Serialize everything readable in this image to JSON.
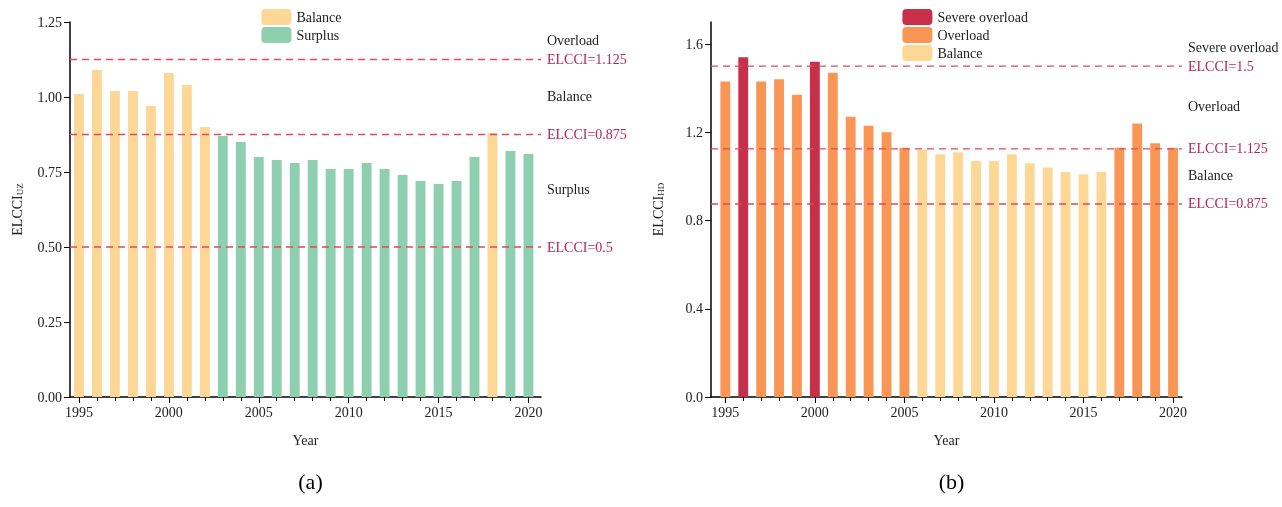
{
  "chart_data": [
    {
      "type": "bar",
      "title": "(a)",
      "xlabel": "Year",
      "ylabel": "ELCCI$_{UZ}$",
      "x": [
        1995,
        1996,
        1997,
        1998,
        1999,
        2000,
        2001,
        2002,
        2003,
        2004,
        2005,
        2006,
        2007,
        2008,
        2009,
        2010,
        2011,
        2012,
        2013,
        2014,
        2015,
        2016,
        2017,
        2018,
        2019,
        2020
      ],
      "series": [
        {
          "name": "Balance",
          "color": "#fdd795",
          "values": [
            1.01,
            1.09,
            1.02,
            1.02,
            0.97,
            1.08,
            1.04,
            0.9,
            null,
            null,
            null,
            null,
            null,
            null,
            null,
            null,
            null,
            null,
            null,
            null,
            null,
            null,
            null,
            0.88,
            null,
            null
          ]
        },
        {
          "name": "Surplus",
          "color": "#8ecfb0",
          "values": [
            null,
            null,
            null,
            null,
            null,
            null,
            null,
            null,
            0.87,
            0.85,
            0.8,
            0.79,
            0.78,
            0.79,
            0.76,
            0.76,
            0.78,
            0.76,
            0.74,
            0.72,
            0.71,
            0.72,
            0.8,
            null,
            0.82,
            0.81
          ]
        }
      ],
      "xlim": [
        1994.5,
        2020.7
      ],
      "xticks": [
        1995,
        2000,
        2005,
        2010,
        2015,
        2020
      ],
      "ylim": [
        0,
        1.25
      ],
      "yticks": [
        {
          "value": 0,
          "label": "0.00"
        },
        {
          "value": 0.25,
          "label": "0.25"
        },
        {
          "value": 0.5,
          "label": "0.50"
        },
        {
          "value": 0.75,
          "label": "0.75"
        },
        {
          "value": 1,
          "label": "1.00"
        },
        {
          "value": 1.25,
          "label": "1.25"
        }
      ],
      "ref_lines": [
        {
          "axis": "y",
          "value": 1.125,
          "label": "ELCCI=1.125",
          "color": "#dd4a60",
          "line_style": "dashed"
        },
        {
          "axis": "y",
          "value": 0.875,
          "label": "ELCCI=0.875",
          "color": "#dd4a60",
          "line_style": "dashed"
        },
        {
          "axis": "y",
          "value": 0.5,
          "label": "ELCCI=0.5",
          "color": "#dd4a60",
          "line_style": "dashed"
        }
      ],
      "annotations": [
        "Overload",
        "Balance",
        "Surplus"
      ],
      "legend": "top",
      "grid": false
    },
    {
      "type": "bar",
      "title": "(b)",
      "xlabel": "Year",
      "ylabel": "ELCCI$_{HD}$",
      "x": [
        1995,
        1996,
        1997,
        1998,
        1999,
        2000,
        2001,
        2002,
        2003,
        2004,
        2005,
        2006,
        2007,
        2008,
        2009,
        2010,
        2011,
        2012,
        2013,
        2014,
        2015,
        2016,
        2017,
        2018,
        2019,
        2020
      ],
      "series": [
        {
          "name": "Severe overload",
          "color": "#c8304a",
          "values": [
            null,
            1.54,
            null,
            null,
            null,
            1.52,
            null,
            null,
            null,
            null,
            null,
            null,
            null,
            null,
            null,
            null,
            null,
            null,
            null,
            null,
            null,
            null,
            null,
            null,
            null,
            null
          ]
        },
        {
          "name": "Overload",
          "color": "#f99656",
          "values": [
            1.43,
            null,
            1.43,
            1.44,
            1.37,
            null,
            1.47,
            1.27,
            1.23,
            1.2,
            1.13,
            null,
            null,
            null,
            null,
            null,
            null,
            null,
            null,
            null,
            null,
            null,
            1.13,
            1.24,
            1.15,
            1.13
          ]
        },
        {
          "name": "Balance",
          "color": "#fdd795",
          "values": [
            null,
            null,
            null,
            null,
            null,
            null,
            null,
            null,
            null,
            null,
            null,
            1.12,
            1.1,
            1.11,
            1.07,
            1.07,
            1.1,
            1.06,
            1.04,
            1.02,
            1.01,
            1.02,
            null,
            null,
            null,
            null
          ]
        }
      ],
      "xlim": [
        1994.2,
        2020.5
      ],
      "xticks": [
        1995,
        2000,
        2005,
        2010,
        2015,
        2020
      ],
      "ylim": [
        0,
        1.7
      ],
      "yticks": [
        {
          "value": 0,
          "label": "0.0"
        },
        {
          "value": 0.4,
          "label": "0.4"
        },
        {
          "value": 0.8,
          "label": "0.8"
        },
        {
          "value": 1.2,
          "label": "1.2"
        },
        {
          "value": 1.6,
          "label": "1.6"
        }
      ],
      "ref_lines": [
        {
          "axis": "y",
          "value": 1.5,
          "label": "ELCCI=1.5",
          "color": "#dd4a60",
          "line_style": "dashed"
        },
        {
          "axis": "y",
          "value": 1.125,
          "label": "ELCCI=1.125",
          "color": "#dd4a60",
          "line_style": "dashed"
        },
        {
          "axis": "y",
          "value": 0.875,
          "label": "ELCCI=0.875",
          "color": "#dd4a60",
          "line_style": "dashed"
        }
      ],
      "annotations": [
        "Severe overload",
        "Overload",
        "Balance"
      ],
      "legend": "top",
      "grid": false
    }
  ]
}
